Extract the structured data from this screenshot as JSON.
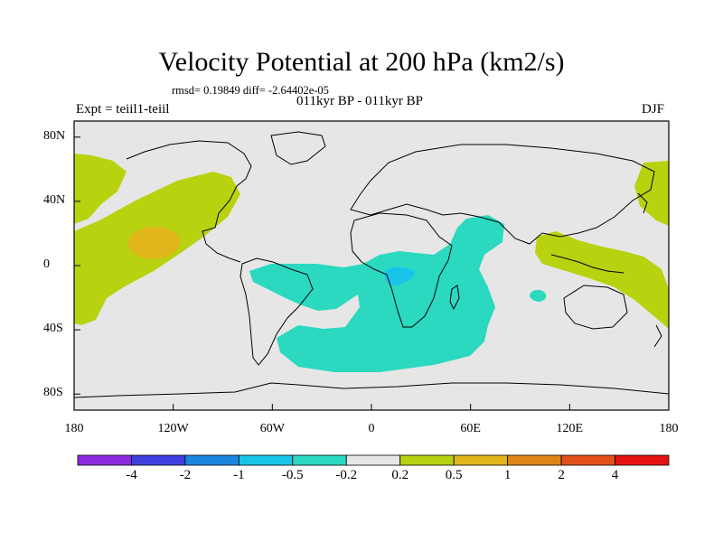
{
  "title": "Velocity Potential at 200 hPa (km2/s)",
  "stats": "rmsd= 0.19849 diff= -2.64402e-05",
  "subtitle": "011kyr BP - 011kyr BP",
  "experiment": "Expt = teiil1-teiil",
  "season": "DJF",
  "y_axis": {
    "ticks": [
      {
        "label": "80N",
        "lat": 80
      },
      {
        "label": "40N",
        "lat": 40
      },
      {
        "label": "0",
        "lat": 0
      },
      {
        "label": "40S",
        "lat": -40
      },
      {
        "label": "80S",
        "lat": -80
      }
    ]
  },
  "x_axis": {
    "ticks": [
      {
        "label": "180",
        "lon": -180
      },
      {
        "label": "120W",
        "lon": -120
      },
      {
        "label": "60W",
        "lon": -60
      },
      {
        "label": "0",
        "lon": 0
      },
      {
        "label": "60E",
        "lon": 60
      },
      {
        "label": "120E",
        "lon": 120
      },
      {
        "label": "180",
        "lon": 180
      }
    ]
  },
  "colorbar": {
    "colors": [
      "#8a2be2",
      "#3f3fe0",
      "#1a86e0",
      "#19c4ea",
      "#2ad9c0",
      "#e6e6e6",
      "#b8d20f",
      "#e0b61a",
      "#e08418",
      "#e3501a",
      "#e51212"
    ],
    "labels": [
      "-4",
      "-2",
      "-1",
      "-0.5",
      "-0.2",
      "0.2",
      "0.5",
      "1",
      "2",
      "4"
    ]
  },
  "colors": {
    "background_field": "#e6e6e6",
    "positive_light": "#b8d20f",
    "positive_mid": "#e0b61a",
    "negative_light": "#2ad9c0",
    "negative_mid": "#19c4ea",
    "coastline": "#000000"
  }
}
